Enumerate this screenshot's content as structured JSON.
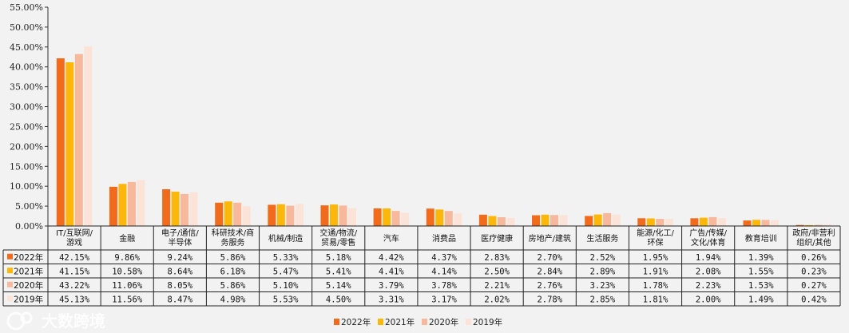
{
  "chart_data": {
    "type": "bar",
    "title": "",
    "xlabel": "",
    "ylabel": "",
    "ylim": [
      0,
      55
    ],
    "yticks": [
      "0.00%",
      "5.00%",
      "10.00%",
      "15.00%",
      "20.00%",
      "25.00%",
      "30.00%",
      "35.00%",
      "40.00%",
      "45.00%",
      "50.00%",
      "55.00%"
    ],
    "grid": false,
    "legend_placement": "bottom",
    "categories": [
      [
        "IT/互联网/",
        "游戏"
      ],
      [
        "金融"
      ],
      [
        "电子/通信/",
        "半导体"
      ],
      [
        "科研技术/商",
        "务服务"
      ],
      [
        "机械/制造"
      ],
      [
        "交通/物流/",
        "贸易/零售"
      ],
      [
        "汽车"
      ],
      [
        "消费品"
      ],
      [
        "医疗健康"
      ],
      [
        "房地产/建筑"
      ],
      [
        "生活服务"
      ],
      [
        "能源/化工/",
        "环保"
      ],
      [
        "广告/传媒/",
        "文化/体育"
      ],
      [
        "教育培训"
      ],
      [
        "政府/非营利",
        "组织/其他"
      ]
    ],
    "series": [
      {
        "name": "2022年",
        "color": "#f26b1d",
        "values": [
          42.15,
          9.86,
          9.24,
          5.86,
          5.33,
          5.18,
          4.42,
          4.37,
          2.83,
          2.7,
          2.52,
          1.95,
          1.94,
          1.39,
          0.26
        ],
        "labels": [
          "42.15%",
          "9.86%",
          "9.24%",
          "5.86%",
          "5.33%",
          "5.18%",
          "4.42%",
          "4.37%",
          "2.83%",
          "2.70%",
          "2.52%",
          "1.95%",
          "1.94%",
          "1.39%",
          "0.26%"
        ]
      },
      {
        "name": "2021年",
        "color": "#fbb80b",
        "values": [
          41.15,
          10.58,
          8.64,
          6.18,
          5.47,
          5.41,
          4.41,
          4.14,
          2.5,
          2.84,
          2.89,
          1.91,
          2.08,
          1.55,
          0.23
        ],
        "labels": [
          "41.15%",
          "10.58%",
          "8.64%",
          "6.18%",
          "5.47%",
          "5.41%",
          "4.41%",
          "4.14%",
          "2.50%",
          "2.84%",
          "2.89%",
          "1.91%",
          "2.08%",
          "1.55%",
          "0.23%"
        ]
      },
      {
        "name": "2020年",
        "color": "#f7b89c",
        "values": [
          43.22,
          11.06,
          8.05,
          5.86,
          5.1,
          5.14,
          3.79,
          3.78,
          2.21,
          2.76,
          3.23,
          1.78,
          2.23,
          1.53,
          0.27
        ],
        "labels": [
          "43.22%",
          "11.06%",
          "8.05%",
          "5.86%",
          "5.10%",
          "5.14%",
          "3.79%",
          "3.78%",
          "2.21%",
          "2.76%",
          "3.23%",
          "1.78%",
          "2.23%",
          "1.53%",
          "0.27%"
        ]
      },
      {
        "name": "2019年",
        "color": "#fbe3d8",
        "values": [
          45.13,
          11.56,
          8.47,
          4.98,
          5.53,
          4.5,
          3.31,
          3.17,
          2.02,
          2.78,
          2.85,
          1.81,
          2.0,
          1.49,
          0.42
        ],
        "labels": [
          "45.13%",
          "11.56%",
          "8.47%",
          "4.98%",
          "5.53%",
          "4.50%",
          "3.31%",
          "3.17%",
          "2.02%",
          "2.78%",
          "2.85%",
          "1.81%",
          "2.00%",
          "1.49%",
          "0.42%"
        ]
      }
    ]
  },
  "watermark": "大数跨境"
}
